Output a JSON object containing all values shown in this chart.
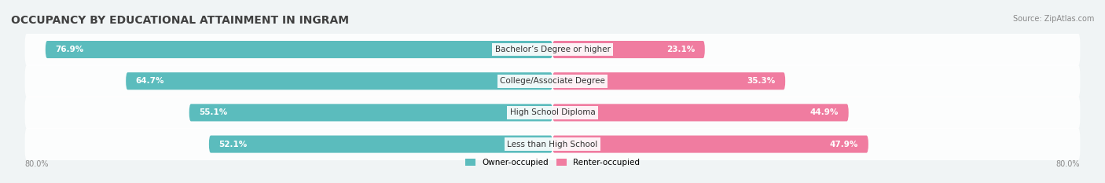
{
  "title": "OCCUPANCY BY EDUCATIONAL ATTAINMENT IN INGRAM",
  "source": "Source: ZipAtlas.com",
  "categories": [
    "Less than High School",
    "High School Diploma",
    "College/Associate Degree",
    "Bachelor’s Degree or higher"
  ],
  "owner_values": [
    52.1,
    55.1,
    64.7,
    76.9
  ],
  "renter_values": [
    47.9,
    44.9,
    35.3,
    23.1
  ],
  "owner_color": "#5bbcbd",
  "renter_color": "#f07ca0",
  "owner_color_light": "#b0dfe0",
  "renter_color_light": "#f8c0d3",
  "bg_color": "#f0f4f5",
  "bar_bg_color": "#e8eef0",
  "title_fontsize": 10,
  "source_fontsize": 7,
  "label_fontsize": 7.5,
  "axis_label_left": "80.0%",
  "axis_label_right": "80.0%",
  "legend_owner": "Owner-occupied",
  "legend_renter": "Renter-occupied"
}
